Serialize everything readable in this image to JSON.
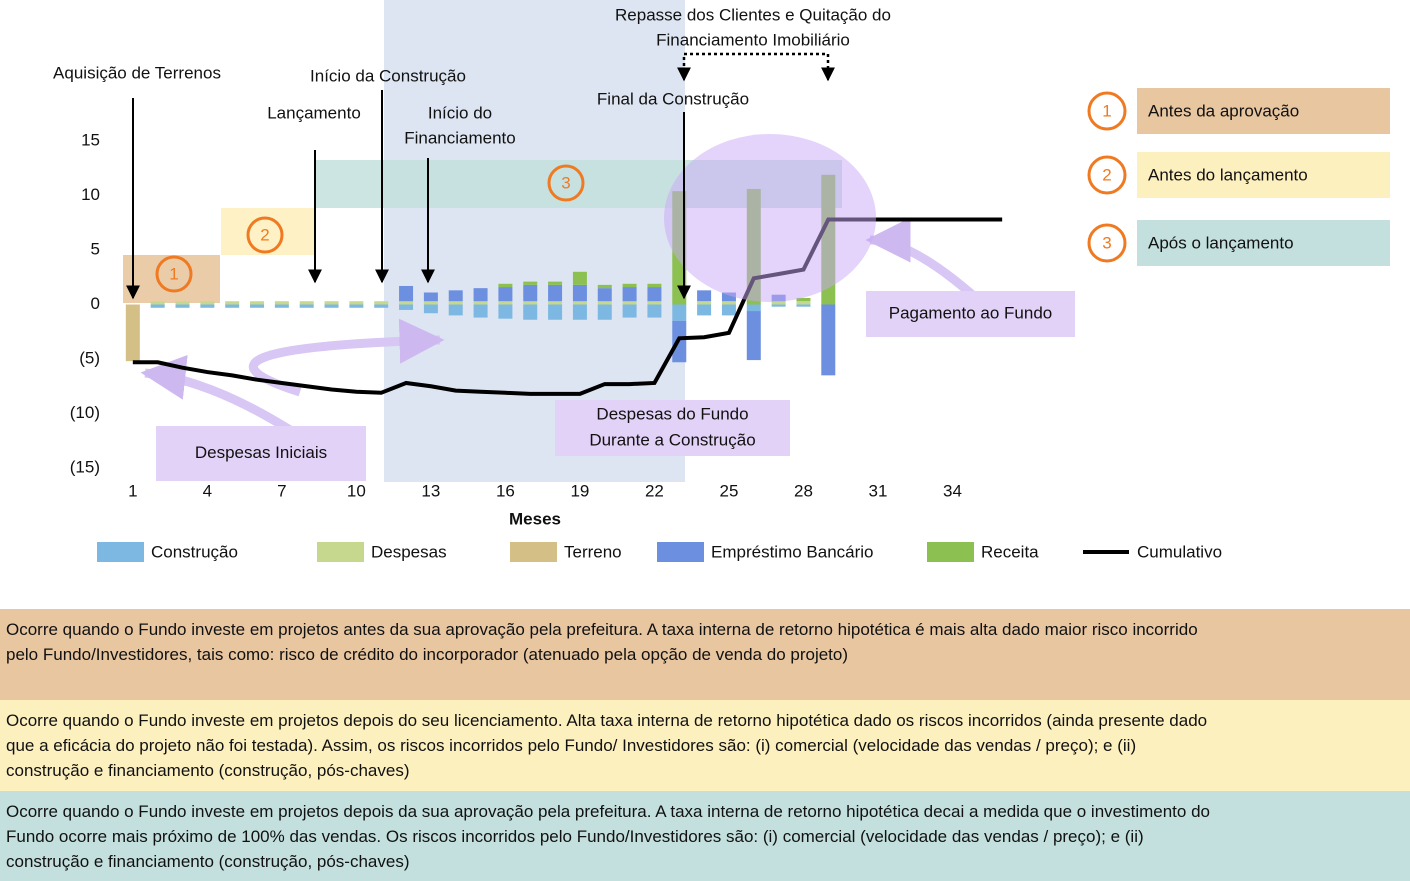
{
  "chart_data": {
    "type": "bar",
    "x_label": "Meses",
    "x": [
      1,
      2,
      3,
      4,
      5,
      6,
      7,
      8,
      9,
      10,
      11,
      12,
      13,
      14,
      15,
      16,
      17,
      18,
      19,
      20,
      21,
      22,
      23,
      24,
      25,
      26,
      27,
      28,
      29,
      30,
      31,
      32,
      33,
      34,
      35,
      36
    ],
    "xlim": [
      0,
      37
    ],
    "xticks": [
      1,
      4,
      7,
      10,
      13,
      16,
      19,
      22,
      25,
      28,
      31,
      34
    ],
    "ylim": [
      -15,
      15
    ],
    "yticks": [
      {
        "value": -15,
        "label": "(15)"
      },
      {
        "value": -10,
        "label": "(10)"
      },
      {
        "value": -5,
        "label": "(5)"
      },
      0,
      5,
      10,
      15
    ],
    "series": [
      {
        "name": "Construção",
        "color": "#7db8e3",
        "values": [
          0,
          -0.3,
          -0.3,
          -0.3,
          -0.3,
          -0.3,
          -0.3,
          -0.3,
          -0.3,
          -0.3,
          -0.3,
          -0.5,
          -0.8,
          -1.0,
          -1.2,
          -1.3,
          -1.4,
          -1.4,
          -1.4,
          -1.4,
          -1.2,
          -1.2,
          -1.5,
          -1.0,
          -1.0,
          -0.6,
          -0.2,
          -0.2,
          0,
          null,
          null,
          null,
          null,
          null,
          null,
          null
        ]
      },
      {
        "name": "Despesas",
        "color": "#c6d88e",
        "values": [
          0,
          0.3,
          0.3,
          0.3,
          0.3,
          0.3,
          0.3,
          0.3,
          0.3,
          0.3,
          0.3,
          0.3,
          0.3,
          0.3,
          0.3,
          0.3,
          0.3,
          0.3,
          0.3,
          0.3,
          0.3,
          0.3,
          0,
          0.3,
          0.3,
          0,
          0.3,
          0.3,
          0,
          null,
          null,
          null,
          null,
          null,
          null,
          null
        ]
      },
      {
        "name": "Terreno",
        "color": "#d4bf86",
        "values": [
          -5.2,
          0,
          0,
          0,
          0,
          0,
          0,
          0,
          0,
          0,
          0,
          0,
          0,
          0,
          0,
          0,
          0,
          0,
          0,
          0,
          0,
          0,
          0,
          0,
          0,
          0,
          0,
          0,
          0,
          null,
          null,
          null,
          null,
          null,
          null,
          null
        ]
      },
      {
        "name": "Empréstimo Bancário",
        "color": "#6d8fe0",
        "values": [
          0,
          0,
          0,
          0,
          0,
          0,
          0,
          0,
          0,
          0,
          0,
          1.4,
          0.8,
          1.0,
          1.2,
          1.3,
          1.5,
          1.5,
          1.5,
          1.2,
          1.3,
          1.3,
          -3.8,
          1.0,
          0.8,
          -4.5,
          0.6,
          0,
          -6.5,
          null,
          null,
          null,
          null,
          null,
          null,
          null
        ]
      },
      {
        "name": "Receita",
        "color": "#8cc152",
        "values": [
          0,
          0,
          0,
          0,
          0,
          0,
          0,
          0,
          0,
          0,
          0,
          0,
          0,
          0,
          0,
          0.3,
          0.3,
          0.3,
          1.2,
          0.3,
          0.3,
          0.3,
          10.4,
          0,
          0,
          10.6,
          0,
          0.3,
          11.9,
          null,
          null,
          null,
          null,
          null,
          null,
          null
        ]
      },
      {
        "name": "Cumulativo",
        "type": "line",
        "color": "#000000",
        "values": [
          -5.3,
          -5.3,
          -5.8,
          -6.2,
          -6.5,
          -6.9,
          -7.2,
          -7.5,
          -7.8,
          -8.0,
          -8.1,
          -7.2,
          -7.5,
          -7.9,
          -8.0,
          -8.1,
          -8.2,
          -8.2,
          -8.2,
          -7.3,
          -7.3,
          -7.2,
          -3.1,
          -3.0,
          -2.6,
          2.4,
          2.8,
          3.2,
          7.8,
          7.8,
          7.8,
          7.8,
          7.8,
          7.8,
          7.8,
          7.8
        ]
      }
    ],
    "annotations": [
      {
        "lines": [
          "Aquisição de Terrenos"
        ]
      },
      {
        "lines": [
          "Início da Construção"
        ]
      },
      {
        "lines": [
          "Lançamento"
        ]
      },
      {
        "lines": [
          "Início do",
          "Financiamento"
        ]
      },
      {
        "lines": [
          "Final da Construção"
        ]
      },
      {
        "lines": [
          "Repasse  dos Clientes e Quitação do",
          "Financiamento Imobiliário"
        ]
      }
    ],
    "callouts": [
      {
        "lines": [
          "Despesas Iniciais"
        ]
      },
      {
        "lines": [
          "Despesas do Fundo",
          "Durante a Construção"
        ]
      },
      {
        "lines": [
          "Pagamento ao Fundo"
        ]
      }
    ],
    "phases": [
      {
        "number": "1",
        "label": "Antes da aprovação",
        "color": "#e8c6a0"
      },
      {
        "number": "2",
        "label": "Antes do lançamento",
        "color": "#fdf0bf"
      },
      {
        "number": "3",
        "label": "Após o lançamento",
        "color": "#c3e0de"
      }
    ]
  },
  "descriptions": [
    {
      "lines": [
        "Ocorre quando o Fundo investe em projetos antes da sua aprovação pela prefeitura.  A taxa interna de retorno hipotética é mais alta dado maior risco incorrido",
        "pelo Fundo/Investidores,  tais como: risco de crédito do incorporador (atenuado pela opção de venda do projeto)"
      ]
    },
    {
      "lines": [
        "Ocorre quando o Fundo investe em projetos depois do seu licenciamento. Alta taxa interna de retorno hipotética dado os riscos incorridos (ainda presente dado",
        "que a eficácia do projeto não foi testada). Assim, os riscos incorridos pelo Fundo/ Investidores  são: (i) comercial (velocidade das vendas / preço); e (ii)",
        "construção e financiamento (construção, pós-chaves)"
      ]
    },
    {
      "lines": [
        "Ocorre quando o Fundo investe em projetos depois da sua aprovação pela prefeitura.  A taxa interna de retorno hipotética decai a medida que o investimento do",
        "Fundo ocorre mais próximo de 100% das vendas. Os riscos incorridos pelo Fundo/Investidores  são: (i) comercial (velocidade das vendas / preço); e (ii)",
        "construção e financiamento (construção, pós-chaves)"
      ]
    }
  ]
}
